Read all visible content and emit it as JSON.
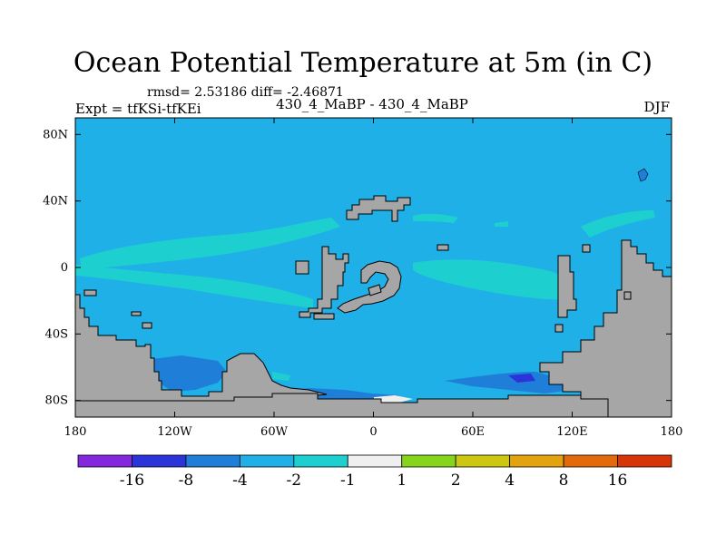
{
  "header": {
    "title": "Ocean Potential Temperature at 5m (in C)",
    "stats": "rmsd= 2.53186 diff= -2.46871",
    "experiment": "Expt = tfKSi-tfKEi",
    "comparison": "430_4_MaBP - 430_4_MaBP",
    "season": "DJF"
  },
  "map": {
    "lon_range": [
      -180,
      180
    ],
    "lat_range": [
      -90,
      90
    ],
    "x_ticks": [
      {
        "value": -180,
        "label": "180"
      },
      {
        "value": -120,
        "label": "120W"
      },
      {
        "value": -60,
        "label": "60W"
      },
      {
        "value": 0,
        "label": "0"
      },
      {
        "value": 60,
        "label": "60E"
      },
      {
        "value": 120,
        "label": "120E"
      },
      {
        "value": 180,
        "label": "180"
      }
    ],
    "y_ticks": [
      {
        "value": 80,
        "label": "80N"
      },
      {
        "value": 40,
        "label": "40N"
      },
      {
        "value": 0,
        "label": "0"
      },
      {
        "value": -40,
        "label": "40S"
      },
      {
        "value": -80,
        "label": "80S"
      }
    ],
    "colors": {
      "background_field": "#1eb0e6",
      "warm_band": "#1ecfd0",
      "cool_band": "#1f7fd8",
      "land": "#a6a6a6",
      "neutral": "#efefef"
    }
  },
  "colorbar": {
    "colors": [
      "#8428e0",
      "#2a34d8",
      "#1f7fd8",
      "#1eb0e6",
      "#1ecfd0",
      "#efefef",
      "#86d41c",
      "#cdc712",
      "#e3a30e",
      "#e26a0c",
      "#d8340a"
    ],
    "labels": [
      "-16",
      "-8",
      "-4",
      "-2",
      "-1",
      "1",
      "2",
      "4",
      "8",
      "16"
    ]
  }
}
